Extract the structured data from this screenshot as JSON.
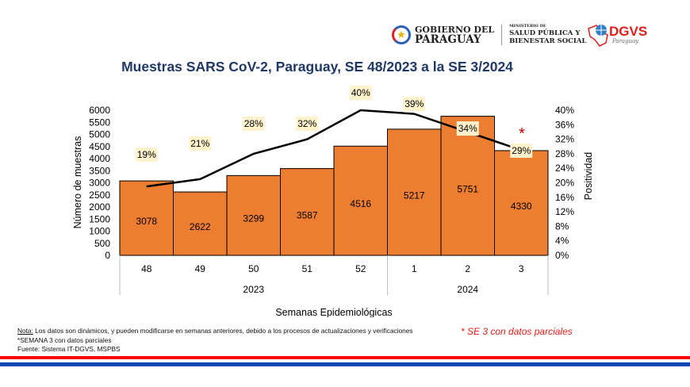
{
  "header": {
    "gob_line1": "GOBIERNO DEL",
    "gob_line2": "PARAGUAY",
    "min_line0": "MINISTERIO DE",
    "min_line1": "SALUD PÚBLICA Y",
    "min_line2": "BIENESTAR SOCIAL",
    "dgvs_title": "DGVS",
    "dgvs_sub": "Paraguay"
  },
  "chart_data": {
    "type": "bar+line",
    "title": "Muestras SARS CoV-2, Paraguay, SE 48/2023 a la SE 3/2024",
    "categories": [
      "48",
      "49",
      "50",
      "51",
      "52",
      "1",
      "2",
      "3"
    ],
    "year_groups": [
      {
        "label": "2023",
        "count": 5
      },
      {
        "label": "2024",
        "count": 3
      }
    ],
    "series": [
      {
        "name": "Número de muestras",
        "type": "bar",
        "axis": "left",
        "values": [
          3078,
          2622,
          3299,
          3587,
          4516,
          5217,
          5751,
          4330
        ],
        "color": "#ed7d31"
      },
      {
        "name": "Positividad",
        "type": "line",
        "axis": "right",
        "values": [
          19,
          21,
          28,
          32,
          40,
          39,
          34,
          29
        ],
        "labels": [
          "19%",
          "21%",
          "28%",
          "32%",
          "40%",
          "39%",
          "34%",
          "29%"
        ],
        "color": "#000000"
      }
    ],
    "xlabel": "Semanas Epidemiológicas",
    "ylabel": "Número de muestras",
    "y2label": "Positividad",
    "ylim": [
      0,
      6000
    ],
    "yticks": [
      0,
      500,
      1000,
      1500,
      2000,
      2500,
      3000,
      3500,
      4000,
      4500,
      5000,
      5500,
      6000
    ],
    "y2lim": [
      0,
      40
    ],
    "y2ticks": [
      "0%",
      "4%",
      "8%",
      "12%",
      "16%",
      "20%",
      "24%",
      "28%",
      "32%",
      "36%",
      "40%"
    ],
    "annotation": "*",
    "annotation_color": "#c00000"
  },
  "notes": {
    "nota_label": "Nota:",
    "nota_text": " Los datos son dinámicos, y pueden modificarse en semanas anteriores, debido a los procesos de actualizaciones y verificaciones",
    "line2": "*SEMANA 3 con datos parciales",
    "line3": "Fuente: Sistema IT-DGVS, MSPBS",
    "partial": "* SE 3 con datos parciales"
  },
  "colors": {
    "title": "#1f3864",
    "stripe_red": "#ff0000",
    "stripe_blue": "#0a47b5"
  }
}
